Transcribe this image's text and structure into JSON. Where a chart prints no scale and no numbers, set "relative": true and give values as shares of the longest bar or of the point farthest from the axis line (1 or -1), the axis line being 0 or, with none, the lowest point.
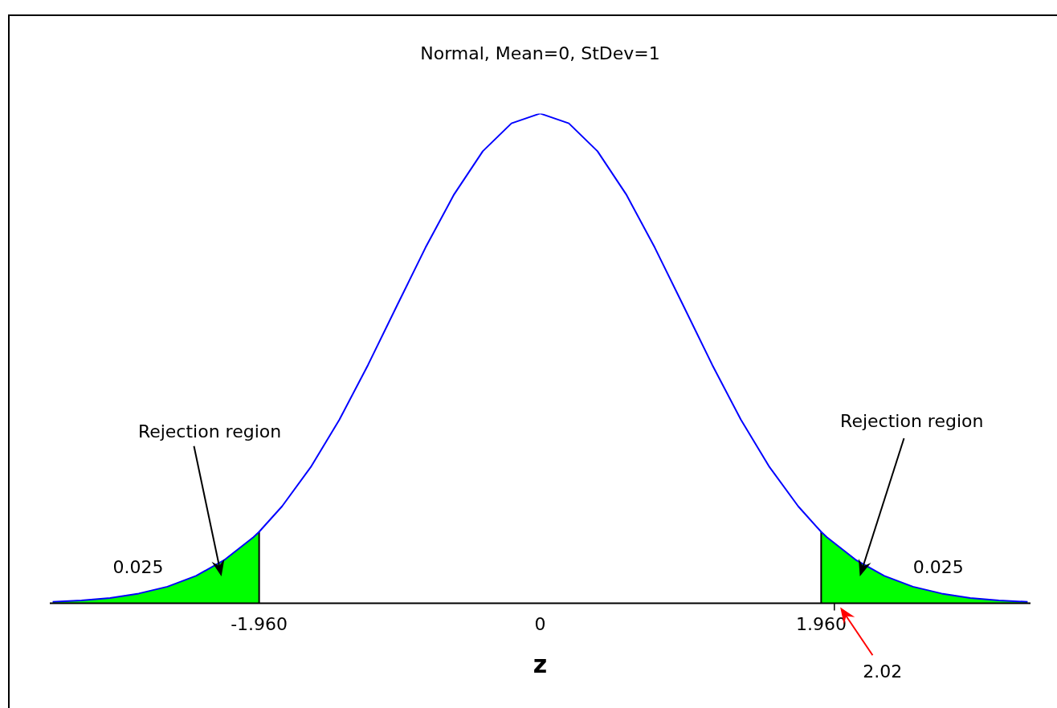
{
  "chart_data": {
    "type": "line",
    "title": "Normal, Mean=0, StDev=1",
    "xlabel": "z",
    "relative": true,
    "xlim": [
      -3.42,
      3.42
    ],
    "xticks": [
      {
        "value": -1.96,
        "label": "-1.960"
      },
      0,
      {
        "value": 1.96,
        "label": "1.960"
      }
    ],
    "series": [
      {
        "color": "#0000ff",
        "x": [
          -3.4,
          -3.2,
          -3.0,
          -2.8,
          -2.6,
          -2.4,
          -2.2,
          -2.0,
          -1.96,
          -1.8,
          -1.6,
          -1.4,
          -1.2,
          -1.0,
          -0.8,
          -0.6,
          -0.4,
          -0.2,
          0,
          0.2,
          0.4,
          0.6,
          0.8,
          1.0,
          1.2,
          1.4,
          1.6,
          1.8,
          1.96,
          2.0,
          2.2,
          2.4,
          2.6,
          2.8,
          3.0,
          3.2,
          3.4
        ],
        "values": [
          0.003,
          0.006,
          0.011,
          0.02,
          0.034,
          0.056,
          0.089,
          0.135,
          0.146,
          0.198,
          0.278,
          0.375,
          0.487,
          0.607,
          0.726,
          0.835,
          0.923,
          0.98,
          1,
          0.98,
          0.923,
          0.835,
          0.726,
          0.607,
          0.487,
          0.375,
          0.278,
          0.198,
          0.146,
          0.135,
          0.089,
          0.056,
          0.034,
          0.02,
          0.011,
          0.006,
          0.003
        ]
      },
      {
        "type": "area",
        "color": "#00ff00",
        "x": [
          -3.4,
          -3.2,
          -3.0,
          -2.8,
          -2.6,
          -2.4,
          -2.2,
          -2.0,
          -1.96
        ],
        "values": [
          0.003,
          0.006,
          0.011,
          0.02,
          0.034,
          0.056,
          0.089,
          0.135,
          0.146
        ]
      },
      {
        "type": "area",
        "color": "#00ff00",
        "x": [
          1.96,
          2.0,
          2.2,
          2.4,
          2.6,
          2.8,
          3.0,
          3.2,
          3.4
        ],
        "values": [
          0.146,
          0.135,
          0.089,
          0.056,
          0.034,
          0.02,
          0.011,
          0.006,
          0.003
        ]
      },
      {
        "type": "line",
        "color": "#000000",
        "x": [
          -1.96,
          -1.96
        ],
        "values": [
          0,
          0.146
        ]
      },
      {
        "type": "line",
        "color": "#000000",
        "x": [
          1.96,
          1.96
        ],
        "values": [
          0,
          0.146
        ]
      }
    ],
    "annotations": [
      "Rejection region",
      "0.025",
      "Rejection region",
      "0.025",
      "2.02"
    ],
    "grid": false,
    "legend": false,
    "marker": "none"
  }
}
